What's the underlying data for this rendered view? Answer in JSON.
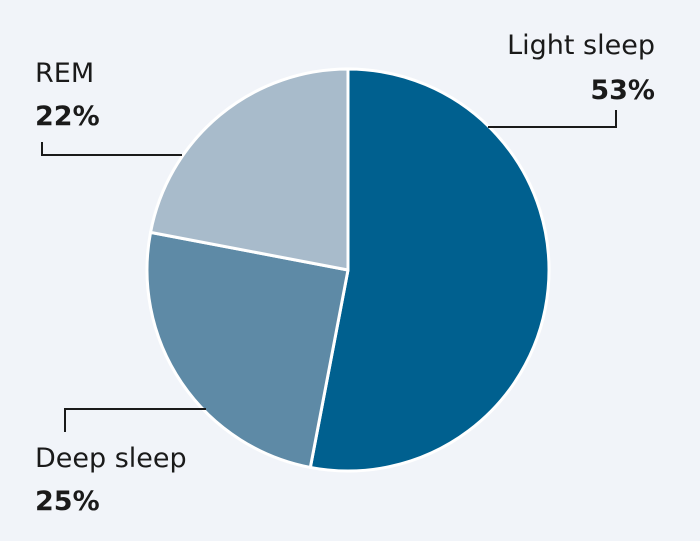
{
  "chart_data": {
    "type": "pie",
    "title": "",
    "slices": [
      {
        "label": "Light sleep",
        "value": 53,
        "display": "53%",
        "color": "#00608f"
      },
      {
        "label": "Deep sleep",
        "value": 25,
        "display": "25%",
        "color": "#5e8aa6"
      },
      {
        "label": "REM",
        "value": 22,
        "display": "22%",
        "color": "#a8bbcb"
      }
    ],
    "start_angle": "12 o'clock",
    "direction": "clockwise",
    "legend": "none (direct labels)"
  }
}
